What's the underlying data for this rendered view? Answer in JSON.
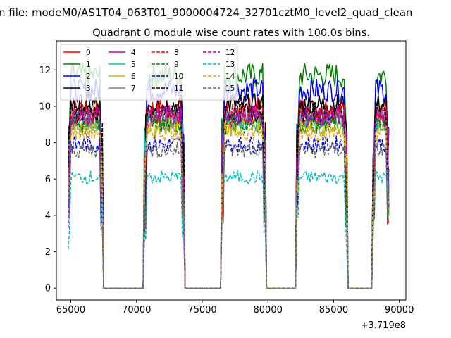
{
  "chart_data": {
    "type": "line",
    "suptitle": "n file: modeM0/AS1T04_063T01_9000004724_32701cztM0_level2_quad_clean",
    "title": "Quadrant 0 module wise count rates with 100.0s bins.",
    "xlabel": "",
    "ylabel": "",
    "x_offset_label": "+3.719e8",
    "xlim": [
      63900,
      90500
    ],
    "ylim": [
      -0.65,
      13.6
    ],
    "xticks": [
      65000,
      70000,
      75000,
      80000,
      85000,
      90000
    ],
    "xtick_labels": [
      "65000",
      "70000",
      "75000",
      "80000",
      "85000",
      "90000"
    ],
    "yticks": [
      0,
      2,
      4,
      6,
      8,
      10,
      12
    ],
    "ytick_labels": [
      "0",
      "2",
      "4",
      "6",
      "8",
      "10",
      "12"
    ],
    "grid": false,
    "legend": {
      "placement": "top-left",
      "ncol": 4
    },
    "segments": [
      {
        "start": 64800,
        "end": 67400
      },
      {
        "start": 70600,
        "end": 73600
      },
      {
        "start": 76500,
        "end": 79800
      },
      {
        "start": 82200,
        "end": 86000
      },
      {
        "start": 88000,
        "end": 89200
      }
    ],
    "bin_seconds": 100,
    "series": [
      {
        "name": "0",
        "color": "#ff0000",
        "dash": "solid",
        "level": 9.9
      },
      {
        "name": "1",
        "color": "#008000",
        "dash": "solid",
        "level": 11.7
      },
      {
        "name": "2",
        "color": "#0000ff",
        "dash": "solid",
        "level": 10.9
      },
      {
        "name": "3",
        "color": "#000000",
        "dash": "solid",
        "level": 10.1
      },
      {
        "name": "4",
        "color": "#bf00bf",
        "dash": "solid",
        "level": 9.5
      },
      {
        "name": "5",
        "color": "#00bfbf",
        "dash": "solid",
        "level": 9.2
      },
      {
        "name": "6",
        "color": "#bfbf00",
        "dash": "solid",
        "level": 8.9
      },
      {
        "name": "7",
        "color": "#808080",
        "dash": "solid",
        "level": 9.3
      },
      {
        "name": "8",
        "color": "#ff0000",
        "dash": "dashed",
        "level": 9.6
      },
      {
        "name": "9",
        "color": "#008000",
        "dash": "dashed",
        "level": 9.0
      },
      {
        "name": "10",
        "color": "#0000ff",
        "dash": "dashed",
        "level": 7.9
      },
      {
        "name": "11",
        "color": "#000000",
        "dash": "dashed",
        "level": 9.7
      },
      {
        "name": "12",
        "color": "#bf00bf",
        "dash": "dashed",
        "level": 9.4
      },
      {
        "name": "13",
        "color": "#00bfbf",
        "dash": "dashed",
        "level": 6.1
      },
      {
        "name": "14",
        "color": "#daa520",
        "dash": "dashed",
        "level": 8.6
      },
      {
        "name": "15",
        "color": "#696969",
        "dash": "dashed",
        "level": 7.6
      }
    ]
  }
}
